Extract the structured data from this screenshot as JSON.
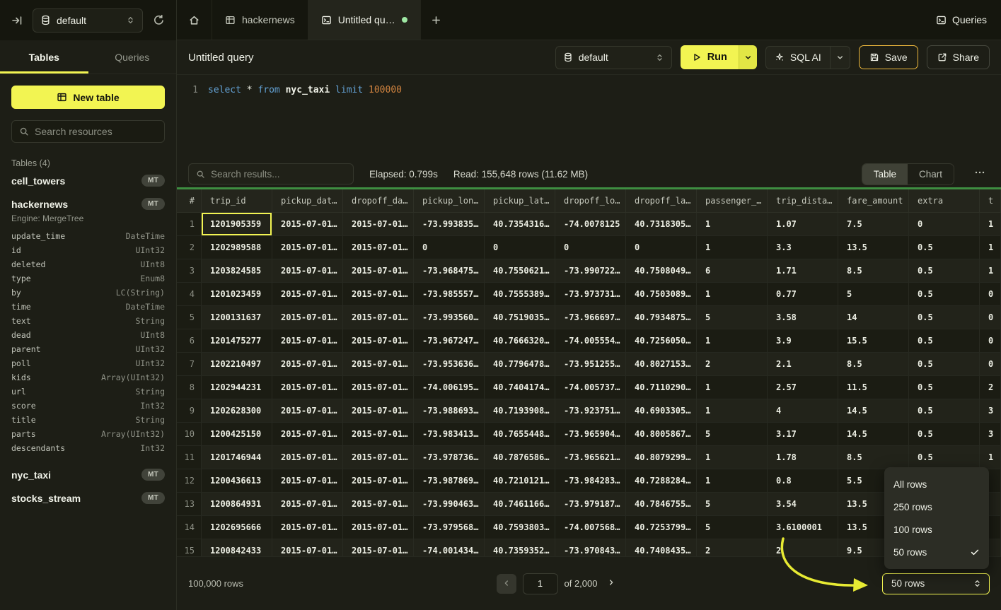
{
  "topbar": {
    "database": "default",
    "tabs": [
      {
        "label": "hackernews"
      },
      {
        "label": "Untitled qu…",
        "unsaved": true
      }
    ],
    "queries_label": "Queries"
  },
  "sidebar": {
    "tabs_labels": [
      "Tables",
      "Queries"
    ],
    "new_table_label": "New table",
    "search_placeholder": "Search resources",
    "section_label": "Tables (4)",
    "tables": [
      {
        "name": "cell_towers",
        "badge": "MT"
      },
      {
        "name": "hackernews",
        "badge": "MT",
        "engine": "Engine: MergeTree",
        "columns": [
          [
            "update_time",
            "DateTime"
          ],
          [
            "id",
            "UInt32"
          ],
          [
            "deleted",
            "UInt8"
          ],
          [
            "type",
            "Enum8"
          ],
          [
            "by",
            "LC(String)"
          ],
          [
            "time",
            "DateTime"
          ],
          [
            "text",
            "String"
          ],
          [
            "dead",
            "UInt8"
          ],
          [
            "parent",
            "UInt32"
          ],
          [
            "poll",
            "UInt32"
          ],
          [
            "kids",
            "Array(UInt32)"
          ],
          [
            "url",
            "String"
          ],
          [
            "score",
            "Int32"
          ],
          [
            "title",
            "String"
          ],
          [
            "parts",
            "Array(UInt32)"
          ],
          [
            "descendants",
            "Int32"
          ]
        ]
      },
      {
        "name": "nyc_taxi",
        "badge": "MT"
      },
      {
        "name": "stocks_stream",
        "badge": "MT"
      }
    ]
  },
  "query": {
    "title": "Untitled query",
    "database": "default",
    "run_label": "Run",
    "sql_ai_label": "SQL AI",
    "save_label": "Save",
    "share_label": "Share",
    "editor": {
      "line_number": "1",
      "tokens": [
        {
          "t": "select",
          "c": "kw"
        },
        {
          "t": " ",
          "c": "plain"
        },
        {
          "t": "*",
          "c": "plain"
        },
        {
          "t": " ",
          "c": "plain"
        },
        {
          "t": "from",
          "c": "kw"
        },
        {
          "t": " ",
          "c": "plain"
        },
        {
          "t": "nyc_taxi",
          "c": "ident"
        },
        {
          "t": " ",
          "c": "plain"
        },
        {
          "t": "limit",
          "c": "kw"
        },
        {
          "t": " ",
          "c": "plain"
        },
        {
          "t": "100000",
          "c": "num"
        }
      ]
    }
  },
  "results": {
    "search_placeholder": "Search results...",
    "elapsed": "Elapsed: 0.799s",
    "read": "Read: 155,648 rows (11.62 MB)",
    "view_tabs": [
      "Table",
      "Chart"
    ],
    "columns": [
      "#",
      "trip_id",
      "pickup_dat…",
      "dropoff_da…",
      "pickup_lon…",
      "pickup_lat…",
      "dropoff_lo…",
      "dropoff_la…",
      "passenger_…",
      "trip_dista…",
      "fare_amount",
      "extra",
      "t"
    ],
    "selected_cell": {
      "row": 0,
      "col": 0
    },
    "rows": [
      [
        "1201905359",
        "2015-07-01…",
        "2015-07-01…",
        "-73.993835…",
        "40.7354316…",
        "-74.0078125",
        "40.7318305…",
        "1",
        "1.07",
        "7.5",
        "0",
        "1"
      ],
      [
        "1202989588",
        "2015-07-01…",
        "2015-07-01…",
        "0",
        "0",
        "0",
        "0",
        "1",
        "3.3",
        "13.5",
        "0.5",
        "1"
      ],
      [
        "1203824585",
        "2015-07-01…",
        "2015-07-01…",
        "-73.968475…",
        "40.7550621…",
        "-73.990722…",
        "40.7508049…",
        "6",
        "1.71",
        "8.5",
        "0.5",
        "1"
      ],
      [
        "1201023459",
        "2015-07-01…",
        "2015-07-01…",
        "-73.985557…",
        "40.7555389…",
        "-73.973731…",
        "40.7503089…",
        "1",
        "0.77",
        "5",
        "0.5",
        "0"
      ],
      [
        "1200131637",
        "2015-07-01…",
        "2015-07-01…",
        "-73.993560…",
        "40.7519035…",
        "-73.966697…",
        "40.7934875…",
        "5",
        "3.58",
        "14",
        "0.5",
        "0"
      ],
      [
        "1201475277",
        "2015-07-01…",
        "2015-07-01…",
        "-73.967247…",
        "40.7666320…",
        "-74.005554…",
        "40.7256050…",
        "1",
        "3.9",
        "15.5",
        "0.5",
        "0"
      ],
      [
        "1202210497",
        "2015-07-01…",
        "2015-07-01…",
        "-73.953636…",
        "40.7796478…",
        "-73.951255…",
        "40.8027153…",
        "2",
        "2.1",
        "8.5",
        "0.5",
        "0"
      ],
      [
        "1202944231",
        "2015-07-01…",
        "2015-07-01…",
        "-74.006195…",
        "40.7404174…",
        "-74.005737…",
        "40.7110290…",
        "1",
        "2.57",
        "11.5",
        "0.5",
        "2"
      ],
      [
        "1202628300",
        "2015-07-01…",
        "2015-07-01…",
        "-73.988693…",
        "40.7193908…",
        "-73.923751…",
        "40.6903305…",
        "1",
        "4",
        "14.5",
        "0.5",
        "3"
      ],
      [
        "1200425150",
        "2015-07-01…",
        "2015-07-01…",
        "-73.983413…",
        "40.7655448…",
        "-73.965904…",
        "40.8005867…",
        "5",
        "3.17",
        "14.5",
        "0.5",
        "3"
      ],
      [
        "1201746944",
        "2015-07-01…",
        "2015-07-01…",
        "-73.978736…",
        "40.7876586…",
        "-73.965621…",
        "40.8079299…",
        "1",
        "1.78",
        "8.5",
        "0.5",
        "1"
      ],
      [
        "1200436613",
        "2015-07-01…",
        "2015-07-01…",
        "-73.987869…",
        "40.7210121…",
        "-73.984283…",
        "40.7288284…",
        "1",
        "0.8",
        "5.5",
        "",
        ""
      ],
      [
        "1200864931",
        "2015-07-01…",
        "2015-07-01…",
        "-73.990463…",
        "40.7461166…",
        "-73.979187…",
        "40.7846755…",
        "5",
        "3.54",
        "13.5",
        "",
        ""
      ],
      [
        "1202695666",
        "2015-07-01…",
        "2015-07-01…",
        "-73.979568…",
        "40.7593803…",
        "-74.007568…",
        "40.7253799…",
        "5",
        "3.6100001",
        "13.5",
        "",
        ""
      ],
      [
        "1200842433",
        "2015-07-01…",
        "2015-07-01…",
        "-74.001434…",
        "40.7359352…",
        "-73.970843…",
        "40.7408435…",
        "2",
        "2",
        "9.5",
        "",
        ""
      ]
    ]
  },
  "footer": {
    "total": "100,000 rows",
    "page": "1",
    "page_count": "of 2,000",
    "page_size": "50 rows"
  },
  "page_size_menu": {
    "options": [
      {
        "label": "All rows",
        "checked": false
      },
      {
        "label": "250 rows",
        "checked": false
      },
      {
        "label": "100 rows",
        "checked": false
      },
      {
        "label": "50 rows",
        "checked": true
      }
    ]
  },
  "colors": {
    "accent_yellow": "#f2f452",
    "save_border": "#ecb73d",
    "result_ok_green": "#3e8e41",
    "tab_unsaved_dot": "#9fe8a4"
  }
}
